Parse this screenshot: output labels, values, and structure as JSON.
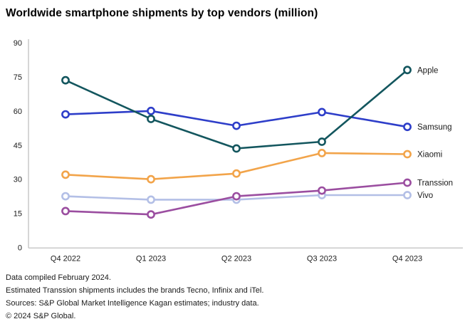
{
  "title": "Worldwide smartphone shipments by top vendors (million)",
  "chart_data": {
    "type": "line",
    "categories": [
      "Q4 2022",
      "Q1 2023",
      "Q2 2023",
      "Q3 2023",
      "Q4 2023"
    ],
    "series": [
      {
        "name": "Apple",
        "color": "#13565e",
        "values": [
          73.5,
          56.5,
          43.5,
          46.5,
          78.0
        ]
      },
      {
        "name": "Samsung",
        "color": "#2e3ec9",
        "values": [
          58.5,
          60.0,
          53.5,
          59.5,
          53.0
        ]
      },
      {
        "name": "Xiaomi",
        "color": "#f2a44a",
        "values": [
          32.0,
          30.0,
          32.5,
          41.5,
          41.0
        ]
      },
      {
        "name": "Transsion",
        "color": "#9b4ea0",
        "values": [
          16.0,
          14.5,
          22.5,
          25.0,
          28.5
        ]
      },
      {
        "name": "Vivo",
        "color": "#b3bfe6",
        "values": [
          22.5,
          21.0,
          21.0,
          23.0,
          23.0
        ]
      }
    ],
    "title": "Worldwide smartphone shipments by top vendors (million)",
    "xlabel": "",
    "ylabel": "",
    "ylim": [
      0,
      90
    ],
    "yticks": [
      0,
      15,
      30,
      45,
      60,
      75,
      90
    ],
    "grid": false,
    "legend_position": "right-of-last-point",
    "marker": "open-circle",
    "axis_color": "#c9c9c9",
    "label_color": "#1a1a1a"
  },
  "footer": {
    "lines": [
      "Data compiled February 2024.",
      "Estimated Transsion shipments includes the brands Tecno, Infinix and iTel.",
      "Sources: S&P Global Market Intelligence Kagan estimates; industry data.",
      "© 2024 S&P Global."
    ]
  }
}
